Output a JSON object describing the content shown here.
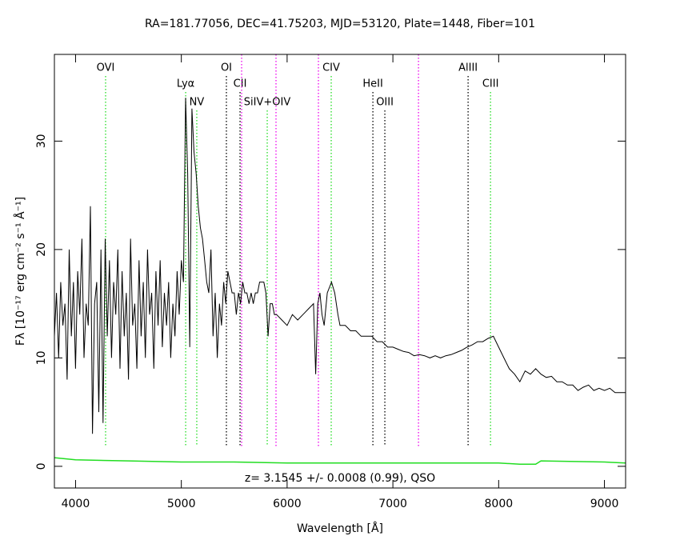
{
  "chart_data": {
    "type": "line",
    "title": "RA=181.77056, DEC=41.75203, MJD=53120, Plate=1448, Fiber=101",
    "x_label": "Wavelength [Å]",
    "y_label": "Fλ [10⁻¹⁷ erg cm⁻² s⁻¹ Å⁻¹]",
    "annotation": "z= 3.1545 +/- 0.0008 (0.99), QSO",
    "xlim": [
      3800,
      9200
    ],
    "ylim": [
      -2,
      38
    ],
    "xticks": [
      4000,
      5000,
      6000,
      7000,
      8000,
      9000
    ],
    "yticks": [
      0,
      10,
      20,
      30
    ],
    "series": [
      {
        "color": "#000000",
        "x": [
          3800,
          3820,
          3840,
          3860,
          3880,
          3900,
          3920,
          3940,
          3960,
          3980,
          4000,
          4020,
          4040,
          4060,
          4080,
          4100,
          4120,
          4140,
          4160,
          4180,
          4200,
          4220,
          4240,
          4260,
          4280,
          4300,
          4320,
          4340,
          4360,
          4380,
          4400,
          4420,
          4440,
          4460,
          4480,
          4500,
          4520,
          4540,
          4560,
          4580,
          4600,
          4620,
          4640,
          4660,
          4680,
          4700,
          4720,
          4740,
          4760,
          4780,
          4800,
          4820,
          4840,
          4860,
          4880,
          4900,
          4920,
          4940,
          4960,
          4980,
          5000,
          5020,
          5040,
          5060,
          5080,
          5100,
          5120,
          5140,
          5160,
          5180,
          5200,
          5220,
          5240,
          5260,
          5280,
          5300,
          5320,
          5340,
          5360,
          5380,
          5400,
          5420,
          5440,
          5460,
          5480,
          5500,
          5520,
          5540,
          5560,
          5580,
          5600,
          5620,
          5640,
          5660,
          5680,
          5700,
          5720,
          5740,
          5760,
          5780,
          5800,
          5820,
          5840,
          5860,
          5880,
          5900,
          5950,
          6000,
          6050,
          6100,
          6150,
          6200,
          6250,
          6270,
          6290,
          6310,
          6330,
          6350,
          6380,
          6420,
          6450,
          6480,
          6500,
          6550,
          6600,
          6650,
          6700,
          6750,
          6800,
          6850,
          6900,
          6950,
          7000,
          7050,
          7100,
          7150,
          7200,
          7250,
          7300,
          7350,
          7400,
          7450,
          7500,
          7550,
          7600,
          7650,
          7700,
          7750,
          7800,
          7850,
          7900,
          7950,
          8000,
          8050,
          8100,
          8150,
          8200,
          8250,
          8300,
          8350,
          8400,
          8450,
          8500,
          8550,
          8600,
          8650,
          8700,
          8750,
          8800,
          8850,
          8900,
          8950,
          9000,
          9050,
          9100,
          9150,
          9200
        ],
        "values": [
          12,
          16,
          10,
          17,
          13,
          15,
          8,
          20,
          12,
          17,
          9,
          18,
          14,
          21,
          10,
          15,
          13,
          24,
          3,
          15,
          17,
          5,
          20,
          4,
          21,
          12,
          19,
          10,
          17,
          14,
          20,
          9,
          18,
          12,
          16,
          8,
          21,
          13,
          15,
          9,
          19,
          12,
          17,
          10,
          20,
          14,
          16,
          9,
          18,
          13,
          19,
          11,
          16,
          13,
          17,
          10,
          15,
          12,
          18,
          14,
          19,
          17,
          34,
          27,
          11,
          33,
          29,
          27,
          24,
          22,
          21,
          19,
          17,
          16,
          20,
          12,
          16,
          10,
          15,
          13,
          17,
          15,
          18,
          17,
          16,
          16,
          14,
          16,
          15,
          17,
          16,
          16,
          15,
          16,
          15,
          16,
          16,
          17,
          17,
          17,
          16,
          12,
          15,
          15,
          14,
          14,
          13.5,
          13,
          14,
          13.5,
          14,
          14.5,
          15,
          8.5,
          15,
          16,
          14,
          13,
          16,
          17,
          16,
          14,
          13,
          13,
          12.5,
          12.5,
          12,
          12,
          12,
          11.5,
          11.5,
          11,
          11,
          10.8,
          10.6,
          10.5,
          10.2,
          10.3,
          10.2,
          10,
          10.2,
          10,
          10.2,
          10.3,
          10.5,
          10.7,
          11,
          11.2,
          11.5,
          11.5,
          11.8,
          12,
          11,
          10,
          9,
          8.5,
          7.8,
          8.8,
          8.5,
          9,
          8.5,
          8.2,
          8.3,
          7.8,
          7.8,
          7.5,
          7.5,
          7,
          7.3,
          7.5,
          7,
          7.2,
          7,
          7.2,
          6.8,
          6.8,
          6.8
        ]
      },
      {
        "color": "#22dd22",
        "x": [
          3800,
          4000,
          4500,
          5000,
          5500,
          6000,
          7000,
          8000,
          8200,
          8350,
          8400,
          9000,
          9200
        ],
        "values": [
          0.8,
          0.6,
          0.5,
          0.4,
          0.4,
          0.3,
          0.3,
          0.3,
          0.2,
          0.2,
          0.5,
          0.4,
          0.3
        ]
      }
    ],
    "marker_lines": [
      {
        "label": "OVI",
        "wavelength": 4284,
        "color": "#22dd22"
      },
      {
        "label": "Lyα",
        "wavelength": 5041,
        "color": "#22dd22"
      },
      {
        "label": "NV",
        "wavelength": 5146,
        "color": "#22dd22"
      },
      {
        "label": "OI",
        "wavelength": 5426,
        "color": "#000000"
      },
      {
        "label": "CII",
        "wavelength": 5555,
        "color": "#000000"
      },
      {
        "label": "SiIV+OIV",
        "wavelength": 5812,
        "color": "#22dd22"
      },
      {
        "label": "CIV",
        "wavelength": 6417,
        "color": "#22dd22"
      },
      {
        "label": "HeII",
        "wavelength": 6811,
        "color": "#000000"
      },
      {
        "label": "OIII",
        "wavelength": 6924,
        "color": "#000000"
      },
      {
        "label": "AlIII",
        "wavelength": 7711,
        "color": "#000000"
      },
      {
        "label": "CIII",
        "wavelength": 7923,
        "color": "#22dd22"
      },
      {
        "label": null,
        "wavelength": 5570,
        "color": "#ee00ee"
      },
      {
        "label": null,
        "wavelength": 5895,
        "color": "#ee00ee"
      },
      {
        "label": null,
        "wavelength": 6296,
        "color": "#ee00ee"
      },
      {
        "label": null,
        "wavelength": 7242,
        "color": "#ee00ee"
      }
    ]
  }
}
